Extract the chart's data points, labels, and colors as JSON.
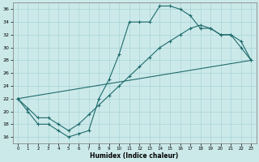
{
  "xlabel": "Humidex (Indice chaleur)",
  "bg_color": "#cce9ea",
  "grid_color": "#a8d4d6",
  "line_color": "#1f6b6b",
  "xlim": [
    -0.5,
    23.5
  ],
  "ylim": [
    15.0,
    37.0
  ],
  "yticks": [
    16,
    18,
    20,
    22,
    24,
    26,
    28,
    30,
    32,
    34,
    36
  ],
  "xticks": [
    0,
    1,
    2,
    3,
    4,
    5,
    6,
    7,
    8,
    9,
    10,
    11,
    12,
    13,
    14,
    15,
    16,
    17,
    18,
    19,
    20,
    21,
    22,
    23
  ],
  "curve1_x": [
    0,
    1,
    2,
    3,
    4,
    5,
    6,
    7,
    8,
    9,
    10,
    11,
    12,
    13,
    14,
    15,
    16,
    17,
    18,
    19,
    20,
    21,
    22,
    23
  ],
  "curve1_y": [
    22,
    20,
    18,
    18,
    17,
    16,
    16.5,
    17,
    22,
    25,
    29,
    34,
    34,
    34,
    36.5,
    36.5,
    36,
    35,
    33,
    33,
    32,
    32,
    30,
    28
  ],
  "curve2_x": [
    0,
    1,
    2,
    3,
    4,
    5,
    6,
    7,
    8,
    9,
    10,
    11,
    12,
    13,
    14,
    15,
    16,
    17,
    18,
    19,
    20,
    21,
    22,
    23
  ],
  "curve2_y": [
    22,
    20.5,
    19,
    19,
    18,
    17,
    18,
    19.5,
    21,
    22.5,
    24,
    25.5,
    27,
    28.5,
    30,
    31,
    32,
    33,
    33.5,
    33,
    32,
    32,
    31,
    28
  ],
  "curve3_x": [
    0,
    23
  ],
  "curve3_y": [
    22,
    28
  ]
}
